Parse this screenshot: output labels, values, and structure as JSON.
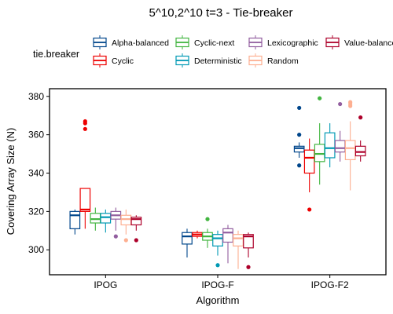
{
  "chart_data": {
    "type": "boxplot",
    "title": "5^10,2^10 t=3 - Tie-breaker",
    "xlabel": "Algorithm",
    "ylabel": "Covering Array Size (N)",
    "categories": [
      "IPOG",
      "IPOG-F",
      "IPOG-F2"
    ],
    "ylim": [
      287,
      384
    ],
    "yticks": [
      300,
      320,
      340,
      360,
      380
    ],
    "grid": false,
    "legend": {
      "title": "tie.breaker",
      "placement": "top",
      "entries": [
        "Alpha-balanced",
        "Cyclic",
        "Cyclic-next",
        "Deterministic",
        "Lexicographic",
        "Random",
        "Value-balanced"
      ]
    },
    "colors": {
      "Alpha-balanced": "#00468b",
      "Cyclic": "#ed0000",
      "Cyclic-next": "#42b540",
      "Deterministic": "#0099b4",
      "Lexicographic": "#925e9f",
      "Random": "#fdaf91",
      "Value-balanced": "#ad002a"
    },
    "series": [
      {
        "name": "Alpha-balanced",
        "boxes": [
          {
            "min": 308,
            "q1": 311,
            "median": 318,
            "q3": 320,
            "max": 321,
            "outliers": []
          },
          {
            "min": 296,
            "q1": 303,
            "median": 307,
            "q3": 309,
            "max": 311,
            "outliers": []
          },
          {
            "min": 348,
            "q1": 351,
            "median": 353,
            "q3": 354,
            "max": 356,
            "outliers": [
              374,
              360,
              344
            ]
          }
        ]
      },
      {
        "name": "Cyclic",
        "boxes": [
          {
            "min": 311,
            "q1": 320,
            "median": 321,
            "q3": 332,
            "max": 332,
            "outliers": [
              367,
              366,
              363
            ]
          },
          {
            "min": 306,
            "q1": 307,
            "median": 308,
            "q3": 309,
            "max": 310,
            "outliers": []
          },
          {
            "min": 330,
            "q1": 340,
            "median": 348,
            "q3": 352,
            "max": 358,
            "outliers": [
              321
            ]
          }
        ]
      },
      {
        "name": "Cyclic-next",
        "boxes": [
          {
            "min": 310,
            "q1": 314,
            "median": 316,
            "q3": 319,
            "max": 322,
            "outliers": []
          },
          {
            "min": 301,
            "q1": 305,
            "median": 307,
            "q3": 309,
            "max": 311,
            "outliers": [
              316
            ]
          },
          {
            "min": 334,
            "q1": 346,
            "median": 350,
            "q3": 355,
            "max": 366,
            "outliers": [
              379
            ]
          }
        ]
      },
      {
        "name": "Deterministic",
        "boxes": [
          {
            "min": 309,
            "q1": 314,
            "median": 317,
            "q3": 319,
            "max": 321,
            "outliers": []
          },
          {
            "min": 297,
            "q1": 302,
            "median": 306,
            "q3": 308,
            "max": 310,
            "outliers": [
              292
            ]
          },
          {
            "min": 343,
            "q1": 348,
            "median": 353,
            "q3": 361,
            "max": 366,
            "outliers": []
          }
        ]
      },
      {
        "name": "Lexicographic",
        "boxes": [
          {
            "min": 310,
            "q1": 316,
            "median": 318,
            "q3": 320,
            "max": 322,
            "outliers": [
              307
            ]
          },
          {
            "min": 293,
            "q1": 304,
            "median": 309,
            "q3": 311,
            "max": 313,
            "outliers": []
          },
          {
            "min": 346,
            "q1": 351,
            "median": 353,
            "q3": 357,
            "max": 362,
            "outliers": [
              376
            ]
          }
        ]
      },
      {
        "name": "Random",
        "boxes": [
          {
            "min": 308,
            "q1": 313,
            "median": 316,
            "q3": 318,
            "max": 321,
            "outliers": [
              305
            ]
          },
          {
            "min": 290,
            "q1": 302,
            "median": 306,
            "q3": 308,
            "max": 310,
            "outliers": []
          },
          {
            "min": 331,
            "q1": 347,
            "median": 353,
            "q3": 357,
            "max": 367,
            "outliers": [
              377,
              376,
              375
            ]
          }
        ]
      },
      {
        "name": "Value-balanced",
        "boxes": [
          {
            "min": 310,
            "q1": 313,
            "median": 316,
            "q3": 317,
            "max": 318,
            "outliers": [
              305
            ]
          },
          {
            "min": 296,
            "q1": 301,
            "median": 307,
            "q3": 308,
            "max": 309,
            "outliers": [
              291
            ]
          },
          {
            "min": 346,
            "q1": 349,
            "median": 351,
            "q3": 354,
            "max": 357,
            "outliers": [
              369
            ]
          }
        ]
      }
    ]
  }
}
